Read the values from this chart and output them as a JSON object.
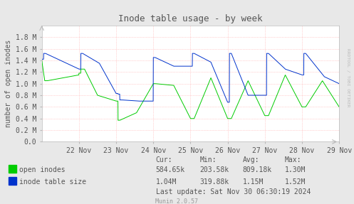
{
  "title": "Inode table usage - by week",
  "ylabel": "number of open inodes",
  "background_color": "#e8e8e8",
  "plot_bg_color": "#ffffff",
  "grid_color": "#ffaaaa",
  "grid_linestyle": ":",
  "ylim": [
    0.0,
    2000000
  ],
  "yticks": [
    0,
    200000,
    400000,
    600000,
    800000,
    1000000,
    1200000,
    1400000,
    1600000,
    1800000
  ],
  "ytick_labels": [
    "0.0",
    "0.2 M",
    "0.4 M",
    "0.6 M",
    "0.8 M",
    "1.0 M",
    "1.2 M",
    "1.4 M",
    "1.6 M",
    "1.8 M"
  ],
  "xtick_positions": [
    1,
    2,
    3,
    4,
    5,
    6,
    7,
    8
  ],
  "xtick_labels": [
    "22 Nov",
    "23 Nov",
    "24 Nov",
    "25 Nov",
    "26 Nov",
    "27 Nov",
    "28 Nov",
    "29 Nov"
  ],
  "green_color": "#00cc00",
  "blue_color": "#0033cc",
  "legend_green": "open inodes",
  "legend_blue": "inode table size",
  "col_headers": [
    "Cur:",
    "Min:",
    "Avg:",
    "Max:"
  ],
  "row_green": [
    "584.65k",
    "203.58k",
    "809.18k",
    "1.30M"
  ],
  "row_blue": [
    "1.04M",
    "319.88k",
    "1.15M",
    "1.52M"
  ],
  "last_update": "Last update: Sat Nov 30 06:30:19 2024",
  "munin_label": "Munin 2.0.57",
  "watermark": "RRDTOOL / TOBI OETIKER",
  "text_color": "#555555",
  "axis_color": "#bbbbbb",
  "title_fontsize": 9,
  "tick_fontsize": 7,
  "footer_fontsize": 7,
  "munin_fontsize": 6
}
